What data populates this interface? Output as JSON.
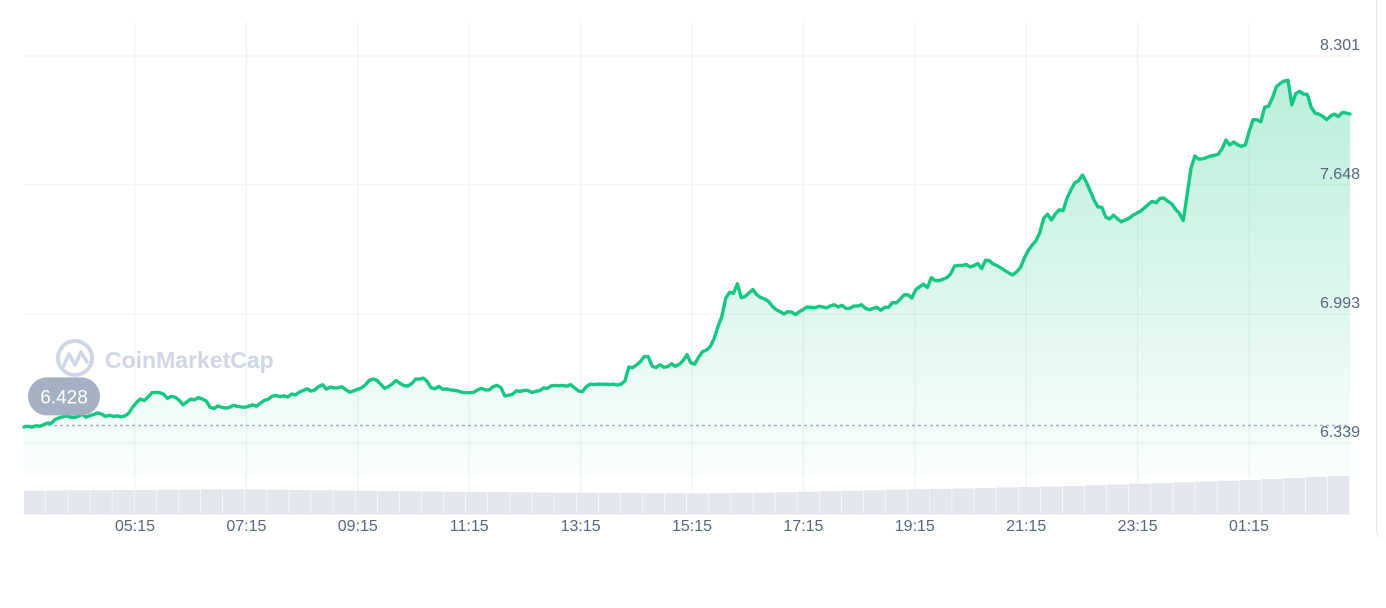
{
  "watermark": {
    "text": "CoinMarketCap",
    "icon": "coinmarketcap-logo-icon"
  },
  "colors": {
    "line": "#16c784",
    "area_top": "#16c784",
    "grid": "#eff2f5",
    "tick_text": "#58667e",
    "baseline": "#a6b0c3",
    "badge": "#a6b0c3",
    "volume": "#e3e6ec"
  },
  "chart_data": {
    "type": "area",
    "title": "",
    "xlabel": "",
    "ylabel": "",
    "x_ticks": [
      "05:15",
      "07:15",
      "09:15",
      "11:15",
      "13:15",
      "15:15",
      "17:15",
      "19:15",
      "21:15",
      "23:15",
      "01:15"
    ],
    "y_ticks": [
      "8.301",
      "7.648",
      "6.993",
      "6.339"
    ],
    "y_tick_values": [
      8.301,
      7.648,
      6.993,
      6.339
    ],
    "ylim": [
      6.118,
      8.301
    ],
    "grid": true,
    "open_price": 6.428,
    "open_price_label": "6.428",
    "series": [
      {
        "values": [
          6.42,
          6.424,
          6.419,
          6.426,
          6.424,
          6.431,
          6.44,
          6.438,
          6.458,
          6.466,
          6.472,
          6.476,
          6.47,
          6.468,
          6.474,
          6.484,
          6.47,
          6.478,
          6.484,
          6.492,
          6.486,
          6.474,
          6.48,
          6.474,
          6.477,
          6.472,
          6.476,
          6.49,
          6.52,
          6.544,
          6.562,
          6.554,
          6.572,
          6.594,
          6.596,
          6.594,
          6.587,
          6.565,
          6.575,
          6.571,
          6.556,
          6.533,
          6.547,
          6.562,
          6.558,
          6.569,
          6.562,
          6.552,
          6.52,
          6.514,
          6.527,
          6.52,
          6.516,
          6.52,
          6.53,
          6.525,
          6.522,
          6.52,
          6.526,
          6.532,
          6.526,
          6.541,
          6.555,
          6.561,
          6.576,
          6.58,
          6.574,
          6.578,
          6.572,
          6.587,
          6.583,
          6.597,
          6.605,
          6.614,
          6.602,
          6.608,
          6.625,
          6.634,
          6.612,
          6.623,
          6.618,
          6.619,
          6.624,
          6.609,
          6.597,
          6.603,
          6.611,
          6.618,
          6.633,
          6.656,
          6.663,
          6.657,
          6.637,
          6.616,
          6.625,
          6.639,
          6.656,
          6.641,
          6.63,
          6.628,
          6.64,
          6.663,
          6.663,
          6.668,
          6.651,
          6.619,
          6.614,
          6.626,
          6.611,
          6.613,
          6.608,
          6.606,
          6.602,
          6.596,
          6.594,
          6.594,
          6.596,
          6.608,
          6.616,
          6.608,
          6.608,
          6.625,
          6.631,
          6.62,
          6.578,
          6.581,
          6.586,
          6.604,
          6.6,
          6.606,
          6.605,
          6.595,
          6.601,
          6.604,
          6.618,
          6.616,
          6.629,
          6.631,
          6.629,
          6.631,
          6.627,
          6.635,
          6.619,
          6.603,
          6.599,
          6.624,
          6.637,
          6.635,
          6.637,
          6.637,
          6.637,
          6.635,
          6.637,
          6.633,
          6.637,
          6.654,
          6.724,
          6.721,
          6.735,
          6.752,
          6.777,
          6.777,
          6.729,
          6.721,
          6.736,
          6.723,
          6.726,
          6.741,
          6.728,
          6.738,
          6.757,
          6.787,
          6.745,
          6.739,
          6.774,
          6.802,
          6.81,
          6.828,
          6.869,
          6.93,
          6.982,
          7.073,
          7.103,
          7.098,
          7.146,
          7.076,
          7.082,
          7.1,
          7.117,
          7.09,
          7.077,
          7.069,
          7.057,
          7.033,
          7.015,
          7.005,
          6.993,
          7.005,
          7.003,
          6.99,
          7.005,
          7.016,
          7.029,
          7.026,
          7.025,
          7.032,
          7.029,
          7.024,
          7.034,
          7.04,
          7.029,
          7.037,
          7.021,
          7.022,
          7.033,
          7.033,
          7.04,
          7.022,
          7.015,
          7.021,
          7.027,
          7.012,
          7.027,
          7.027,
          7.051,
          7.049,
          7.069,
          7.09,
          7.09,
          7.074,
          7.116,
          7.131,
          7.144,
          7.127,
          7.177,
          7.163,
          7.162,
          7.169,
          7.177,
          7.197,
          7.236,
          7.239,
          7.239,
          7.244,
          7.232,
          7.238,
          7.249,
          7.223,
          7.266,
          7.263,
          7.246,
          7.238,
          7.226,
          7.213,
          7.201,
          7.191,
          7.207,
          7.228,
          7.277,
          7.315,
          7.342,
          7.364,
          7.406,
          7.478,
          7.499,
          7.47,
          7.5,
          7.521,
          7.517,
          7.579,
          7.621,
          7.658,
          7.669,
          7.697,
          7.662,
          7.616,
          7.57,
          7.536,
          7.534,
          7.485,
          7.475,
          7.494,
          7.477,
          7.46,
          7.47,
          7.478,
          7.494,
          7.504,
          7.515,
          7.531,
          7.549,
          7.564,
          7.557,
          7.579,
          7.581,
          7.565,
          7.552,
          7.524,
          7.503,
          7.467,
          7.598,
          7.732,
          7.794,
          7.778,
          7.78,
          7.786,
          7.794,
          7.797,
          7.803,
          7.83,
          7.875,
          7.85,
          7.865,
          7.851,
          7.843,
          7.85,
          7.919,
          7.978,
          7.978,
          7.968,
          8.041,
          8.047,
          8.089,
          8.145,
          8.162,
          8.174,
          8.178,
          8.054,
          8.11,
          8.122,
          8.108,
          8.106,
          8.041,
          8.011,
          8.006,
          7.995,
          7.978,
          7.997,
          8.006,
          7.994,
          8.014,
          8.012,
          8.007
        ]
      }
    ],
    "volume": {
      "values": [
        0.93,
        0.94,
        0.95,
        0.95,
        0.96,
        0.96,
        0.97,
        0.97,
        0.98,
        0.98,
        0.98,
        0.97,
        0.96,
        0.95,
        0.94,
        0.93,
        0.92,
        0.91,
        0.9,
        0.89,
        0.88,
        0.88,
        0.87,
        0.86,
        0.85,
        0.85,
        0.84,
        0.84,
        0.83,
        0.83,
        0.82,
        0.83,
        0.84,
        0.85,
        0.87,
        0.89,
        0.91,
        0.93,
        0.95,
        0.97,
        0.99,
        1.0,
        1.02,
        1.04,
        1.06,
        1.08,
        1.1,
        1.12,
        1.15,
        1.18,
        1.21,
        1.24,
        1.27,
        1.3,
        1.33,
        1.36,
        1.4,
        1.44,
        1.48,
        1.52
      ]
    }
  }
}
